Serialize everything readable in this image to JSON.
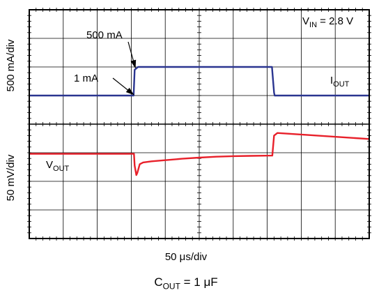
{
  "chart_data": {
    "type": "line",
    "subtitle": "V_IN = 2.8 V",
    "subtitle_parts": {
      "main": "V",
      "sub": "IN",
      "rest": " = 2.8 V"
    },
    "x_axis": {
      "label": "50 μs/div",
      "unit": "div",
      "range": [
        0,
        10
      ],
      "divisions": 10
    },
    "y_axis_top": {
      "label": "500 mA/div",
      "unit": "div",
      "range": [
        0,
        4
      ],
      "divisions": 4
    },
    "y_axis_bottom": {
      "label": "50 mV/div",
      "unit": "div",
      "range": [
        0,
        4
      ],
      "divisions": 4
    },
    "caption": {
      "main": "C",
      "sub": "OUT",
      "rest": " = 1 μF"
    },
    "grid": true,
    "series": [
      {
        "name": "I_OUT",
        "label_parts": {
          "main": "I",
          "sub": "OUT"
        },
        "color": "#2a3590",
        "panel": "top",
        "points": [
          [
            0,
            1.0
          ],
          [
            3.07,
            1.0
          ],
          [
            3.1,
            1.9
          ],
          [
            3.2,
            2.0
          ],
          [
            7.14,
            2.0
          ],
          [
            7.2,
            1.1
          ],
          [
            7.22,
            1.0
          ],
          [
            10,
            1.0
          ]
        ]
      },
      {
        "name": "V_OUT",
        "label_parts": {
          "main": "V",
          "sub": "OUT"
        },
        "color": "#e8202a",
        "panel": "bottom",
        "points": [
          [
            0,
            2.96
          ],
          [
            3.08,
            2.96
          ],
          [
            3.1,
            2.55
          ],
          [
            3.15,
            2.22
          ],
          [
            3.18,
            2.3
          ],
          [
            3.25,
            2.6
          ],
          [
            3.35,
            2.66
          ],
          [
            3.6,
            2.7
          ],
          [
            4.0,
            2.74
          ],
          [
            4.5,
            2.79
          ],
          [
            5.0,
            2.83
          ],
          [
            5.5,
            2.86
          ],
          [
            6.0,
            2.88
          ],
          [
            6.5,
            2.89
          ],
          [
            7.15,
            2.9
          ],
          [
            7.2,
            3.6
          ],
          [
            7.3,
            3.69
          ],
          [
            10,
            3.48
          ]
        ]
      }
    ],
    "annotations": [
      {
        "text": "500 mA",
        "panel": "top",
        "points_to": [
          3.12,
          1.97
        ]
      },
      {
        "text": "1 mA",
        "panel": "top",
        "points_to": [
          3.07,
          1.03
        ]
      }
    ]
  }
}
